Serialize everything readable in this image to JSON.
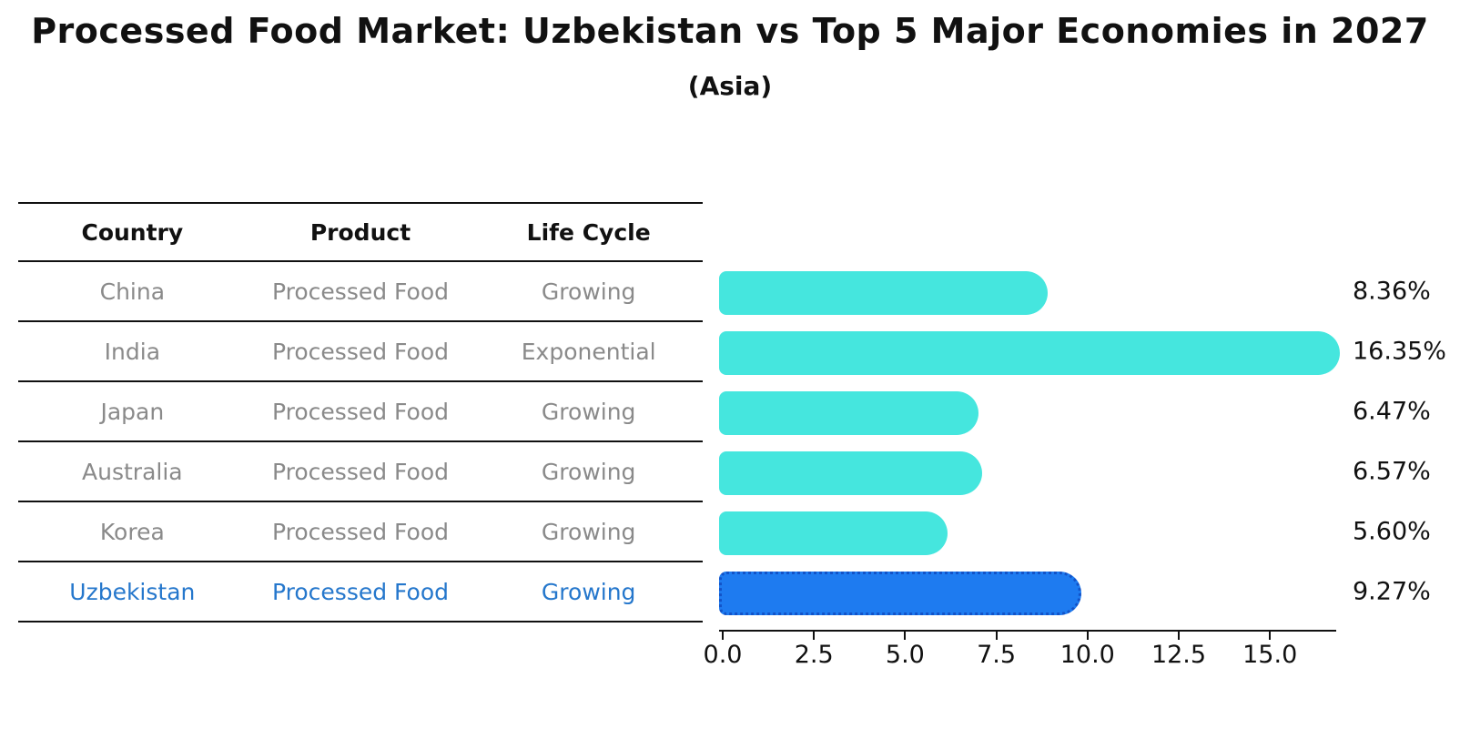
{
  "title": "Processed Food Market: Uzbekistan vs Top 5 Major Economies in 2027",
  "subtitle": "(Asia)",
  "table": {
    "headers": [
      "Country",
      "Product",
      "Life Cycle"
    ],
    "rows": [
      {
        "country": "China",
        "product": "Processed Food",
        "life_cycle": "Growing"
      },
      {
        "country": "India",
        "product": "Processed Food",
        "life_cycle": "Exponential"
      },
      {
        "country": "Japan",
        "product": "Processed Food",
        "life_cycle": "Growing"
      },
      {
        "country": "Australia",
        "product": "Processed Food",
        "life_cycle": "Growing"
      },
      {
        "country": "Korea",
        "product": "Processed Food",
        "life_cycle": "Growing"
      },
      {
        "country": "Uzbekistan",
        "product": "Processed Food",
        "life_cycle": "Growing"
      }
    ],
    "highlighted_row": "Uzbekistan"
  },
  "chart_data": {
    "type": "bar",
    "orientation": "horizontal",
    "title": "Processed Food Market: Uzbekistan vs Top 5 Major Economies in 2027",
    "subtitle": "(Asia)",
    "categories": [
      "China",
      "India",
      "Japan",
      "Australia",
      "Korea",
      "Uzbekistan"
    ],
    "values": [
      8.36,
      16.35,
      6.47,
      6.57,
      5.6,
      9.27
    ],
    "value_labels": [
      "8.36%",
      "16.35%",
      "6.47%",
      "6.57%",
      "5.60%",
      "9.27%"
    ],
    "x_ticks": [
      "0.0",
      "2.5",
      "5.0",
      "7.5",
      "10.0",
      "12.5",
      "15.0"
    ],
    "xlim": [
      0,
      16.9
    ],
    "grid": false,
    "legend": "none",
    "highlight_category": "Uzbekistan",
    "colors": {
      "bar_fill": "#45e6de",
      "highlight_bar_fill": "#1e7bf0",
      "highlight_bar_border": "#1253c8",
      "highlight_text": "#2577cc",
      "muted_text": "#8a8a8a",
      "axis_text": "#111111"
    }
  }
}
